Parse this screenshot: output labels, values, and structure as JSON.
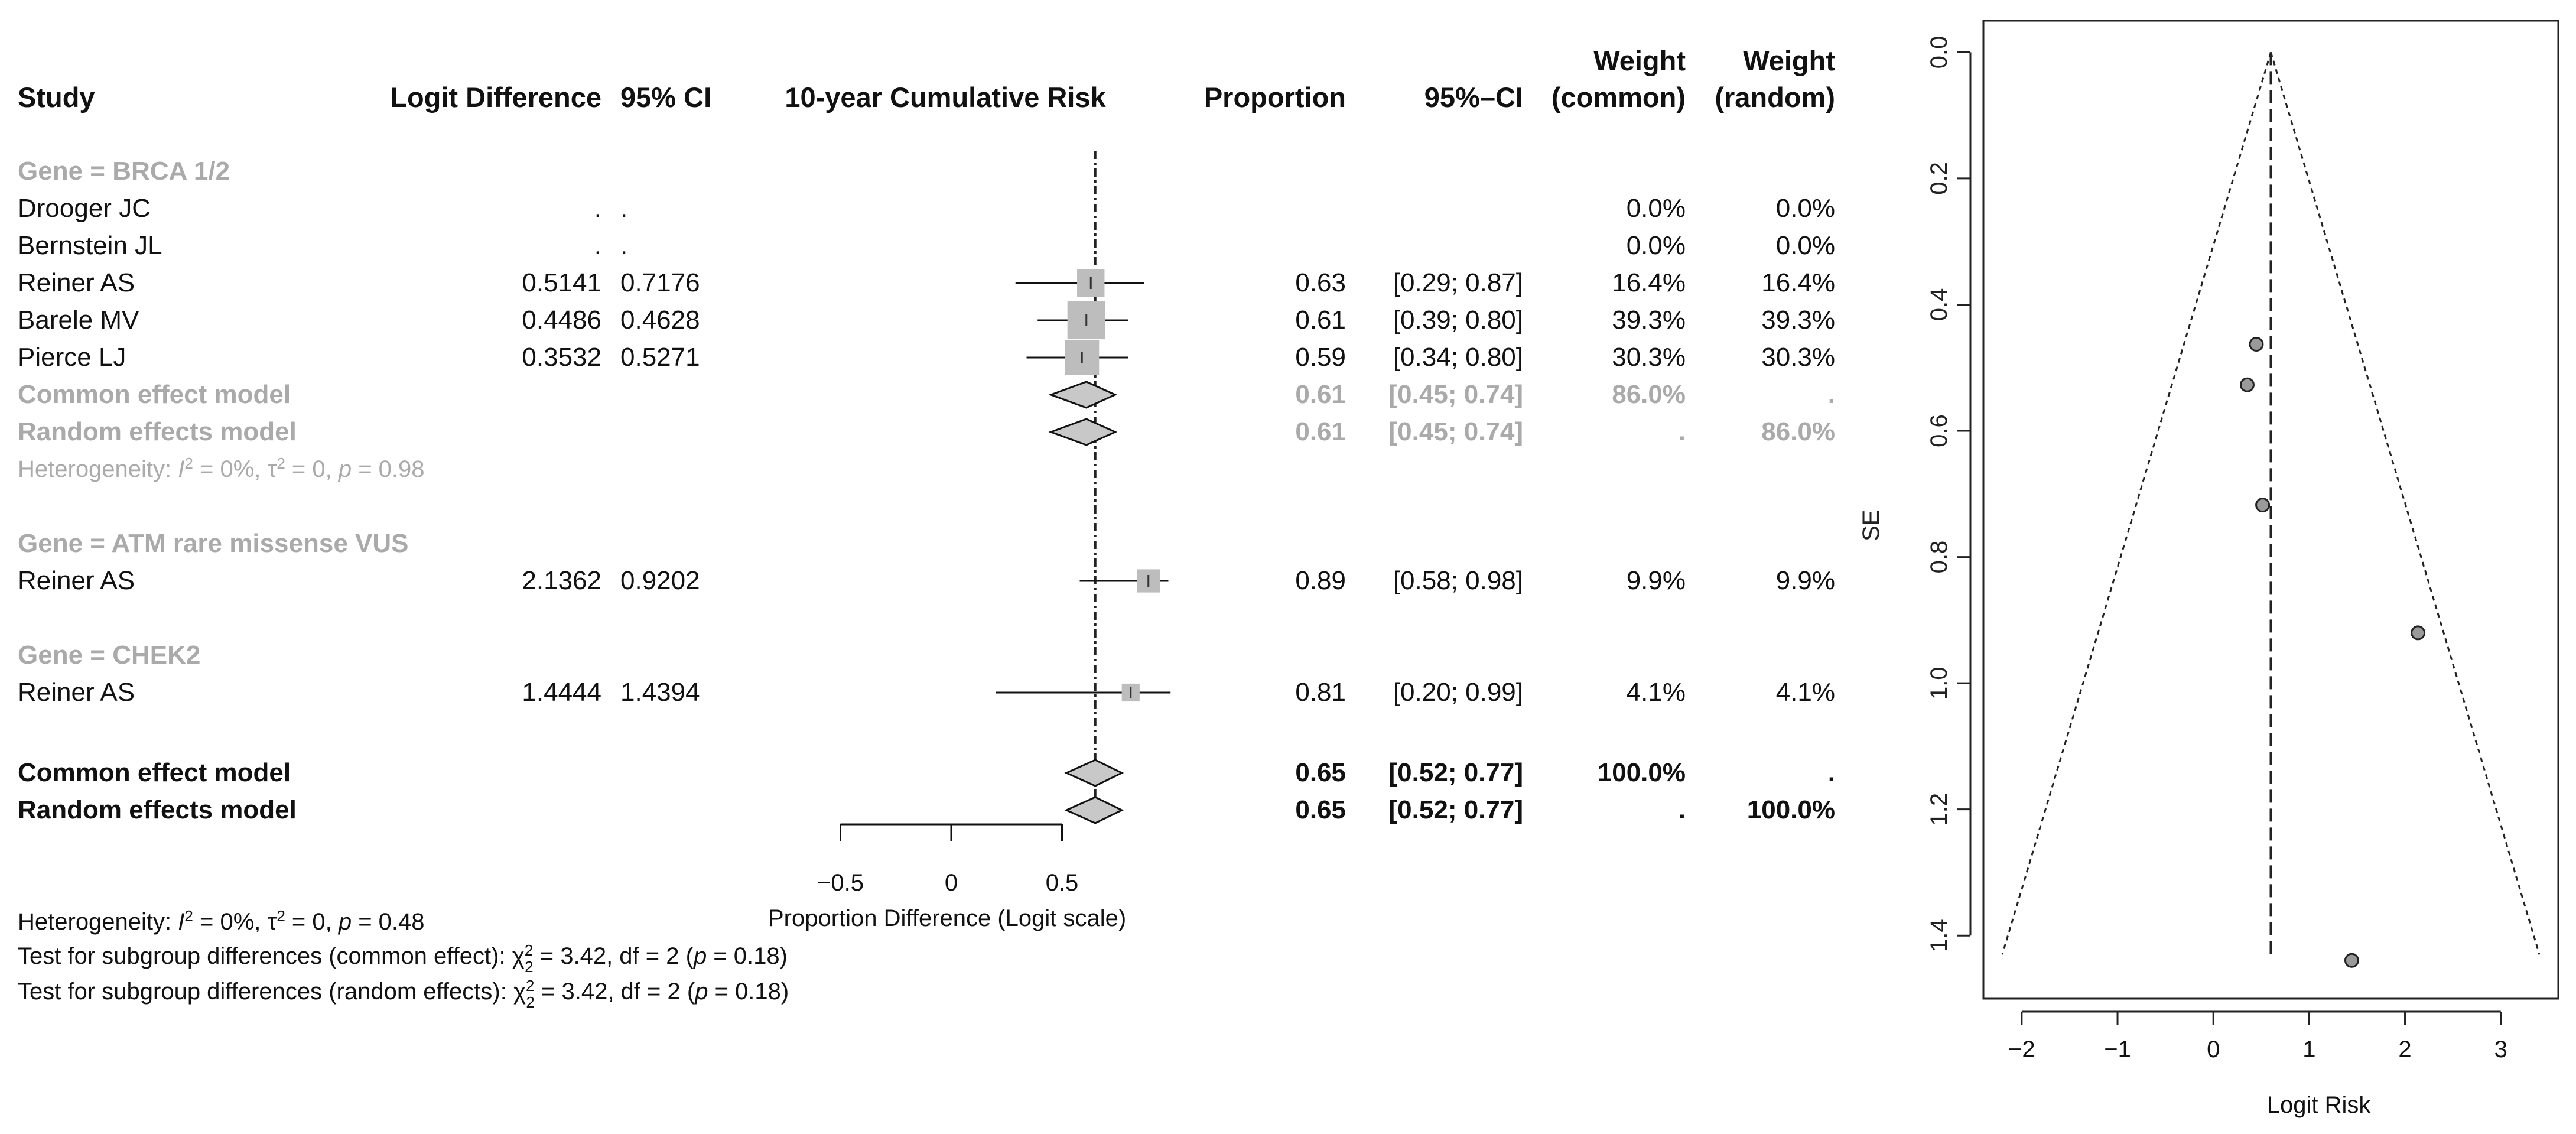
{
  "chart_data": [
    {
      "type": "forest",
      "headers": {
        "study": "Study",
        "logit": "Logit Difference",
        "ci": "95% CI",
        "plot": "10-year Cumulative Risk",
        "proportion": "Proportion",
        "ci_prop": "95%–CI",
        "weight_common_1": "Weight",
        "weight_common_2": "(common)",
        "weight_random_1": "Weight",
        "weight_random_2": "(random)"
      },
      "groups": [
        {
          "label": "Gene = BRCA 1/2",
          "studies": [
            {
              "study": "Drooger JC",
              "logit": ".",
              "ci": ".",
              "proportion": "",
              "ci_text": "",
              "w_common": "0.0%",
              "w_random": "0.0%",
              "est": null,
              "lo": null,
              "hi": null,
              "w": 0
            },
            {
              "study": "Bernstein JL",
              "logit": ".",
              "ci": ".",
              "proportion": "",
              "ci_text": "",
              "w_common": "0.0%",
              "w_random": "0.0%",
              "est": null,
              "lo": null,
              "hi": null,
              "w": 0
            },
            {
              "study": "Reiner AS",
              "logit": "0.5141",
              "ci": "0.7176",
              "proportion": "0.63",
              "ci_text": "[0.29; 0.87]",
              "w_common": "16.4%",
              "w_random": "16.4%",
              "est": 0.63,
              "lo": 0.29,
              "hi": 0.87,
              "w": 16.4
            },
            {
              "study": "Barele MV",
              "logit": "0.4486",
              "ci": "0.4628",
              "proportion": "0.61",
              "ci_text": "[0.39; 0.80]",
              "w_common": "39.3%",
              "w_random": "39.3%",
              "est": 0.61,
              "lo": 0.39,
              "hi": 0.8,
              "w": 39.3
            },
            {
              "study": "Pierce LJ",
              "logit": "0.3532",
              "ci": "0.5271",
              "proportion": "0.59",
              "ci_text": "[0.34; 0.80]",
              "w_common": "30.3%",
              "w_random": "30.3%",
              "est": 0.59,
              "lo": 0.34,
              "hi": 0.8,
              "w": 30.3
            }
          ],
          "common": {
            "label": "Common effect model",
            "proportion": "0.61",
            "ci_text": "[0.45; 0.74]",
            "w_common": "86.0%",
            "w_random": ".",
            "est": 0.61,
            "lo": 0.45,
            "hi": 0.74
          },
          "random": {
            "label": "Random effects model",
            "proportion": "0.61",
            "ci_text": "[0.45; 0.74]",
            "w_common": ".",
            "w_random": "86.0%",
            "est": 0.61,
            "lo": 0.45,
            "hi": 0.74
          },
          "heterogeneity": {
            "prefix": "Heterogeneity: ",
            "i2_sym": "I",
            "i2_sup": "2",
            "i2_val": " = 0%, ",
            "tau_sym": "τ",
            "tau_sup": "2",
            "tau_val": " = 0, ",
            "p_sym": "p",
            "p_val": " = 0.98"
          }
        },
        {
          "label": "Gene = ATM rare missense VUS",
          "studies": [
            {
              "study": "Reiner AS",
              "logit": "2.1362",
              "ci": "0.9202",
              "proportion": "0.89",
              "ci_text": "[0.58; 0.98]",
              "w_common": "9.9%",
              "w_random": "9.9%",
              "est": 0.89,
              "lo": 0.58,
              "hi": 0.98,
              "w": 9.9
            }
          ]
        },
        {
          "label": "Gene = CHEK2",
          "studies": [
            {
              "study": "Reiner AS",
              "logit": "1.4444",
              "ci": "1.4394",
              "proportion": "0.81",
              "ci_text": "[0.20; 0.99]",
              "w_common": "4.1%",
              "w_random": "4.1%",
              "est": 0.81,
              "lo": 0.2,
              "hi": 0.99,
              "w": 4.1
            }
          ]
        }
      ],
      "overall": {
        "common": {
          "label": "Common effect model",
          "proportion": "0.65",
          "ci_text": "[0.52; 0.77]",
          "w_common": "100.0%",
          "w_random": ".",
          "est": 0.65,
          "lo": 0.52,
          "hi": 0.77
        },
        "random": {
          "label": "Random effects model",
          "proportion": "0.65",
          "ci_text": "[0.52; 0.77]",
          "w_common": ".",
          "w_random": "100.0%",
          "est": 0.65,
          "lo": 0.52,
          "hi": 0.77
        }
      },
      "x_axis": {
        "ticks": [
          -0.5,
          0,
          0.5
        ],
        "tick_labels": [
          "−0.5",
          "0",
          "0.5"
        ],
        "label": "Proportion Difference (Logit scale)",
        "range": [
          -0.5,
          0.5
        ]
      },
      "reference_line": 0.65,
      "footer": {
        "heterogeneity": {
          "prefix": "Heterogeneity: ",
          "i2_sym": "I",
          "i2_sup": "2",
          "i2_val": " = 0%, ",
          "tau_sym": "τ",
          "tau_sup": "2",
          "tau_val": " = 0, ",
          "p_sym": "p",
          "p_val": " = 0.48"
        },
        "test_common": {
          "prefix": "Test for subgroup differences (common effect): ",
          "chi_sym": "χ",
          "chi_sup": "2",
          "chi_sub": "2",
          "rest": " = 3.42, df = 2 (",
          "p_sym": "p",
          "p_val": " = 0.18)"
        },
        "test_random": {
          "prefix": "Test for subgroup differences (random effects): ",
          "chi_sym": "χ",
          "chi_sup": "2",
          "chi_sub": "2",
          "rest": " = 3.42, df = 2 (",
          "p_sym": "p",
          "p_val": " = 0.18)"
        }
      }
    },
    {
      "type": "scatter",
      "title": "",
      "xlabel": "Logit Risk",
      "ylabel": "SE",
      "xlim": [
        -2.4,
        3.6
      ],
      "ylim": [
        1.5,
        -0.05
      ],
      "x_ticks": [
        -2,
        -1,
        0,
        1,
        2,
        3
      ],
      "y_ticks": [
        0.0,
        0.2,
        0.4,
        0.6,
        0.8,
        1.0,
        1.2,
        1.4
      ],
      "y_tick_labels": [
        "0.0",
        "0.2",
        "0.4",
        "0.6",
        "0.8",
        "1.0",
        "1.2",
        "1.4"
      ],
      "points": [
        {
          "x": 0.4486,
          "y": 0.4628
        },
        {
          "x": 0.3532,
          "y": 0.5271
        },
        {
          "x": 0.5141,
          "y": 0.7176
        },
        {
          "x": 2.1362,
          "y": 0.9202
        },
        {
          "x": 1.4444,
          "y": 1.4394
        }
      ],
      "center_line": 0.6,
      "funnel": {
        "apex_se": 0,
        "base_se": 1.43,
        "z": 1.96
      }
    }
  ]
}
